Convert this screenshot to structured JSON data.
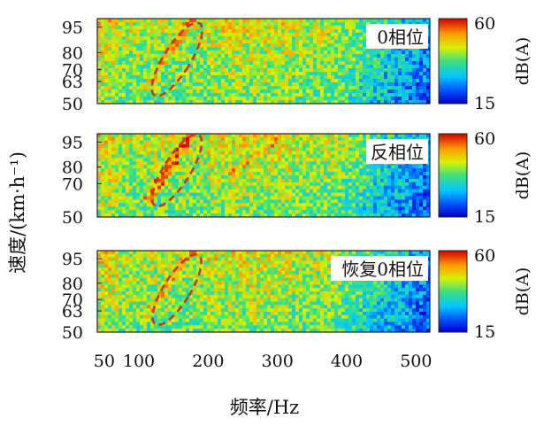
{
  "chart_data": {
    "type": "heatmap",
    "xlabel": "频率/Hz",
    "ylabel": "速度/(km·h⁻¹)",
    "x_ticks": [
      50,
      100,
      200,
      300,
      400,
      500
    ],
    "xlim": [
      40,
      520
    ],
    "colorbar": {
      "label": "dB(A)",
      "min": 15,
      "max": 60,
      "colormap": "jet"
    },
    "panels": [
      {
        "tag": "0相位",
        "y_ticks": [
          50,
          63,
          70,
          80,
          95
        ],
        "ylim": [
          50,
          100
        ],
        "ellipse": {
          "center": [
            155,
            76
          ],
          "highlight_color": "#c0392b"
        }
      },
      {
        "tag": "反相位",
        "y_ticks": [
          50,
          70,
          80,
          95
        ],
        "ylim": [
          50,
          100
        ],
        "ellipse": {
          "center": [
            155,
            78
          ],
          "highlight_color": "#c0392b"
        }
      },
      {
        "tag": "恢复0相位",
        "y_ticks": [
          50,
          63,
          70,
          80,
          95
        ],
        "ylim": [
          50,
          100
        ],
        "ellipse": {
          "center": [
            155,
            76
          ],
          "highlight_color": "#c0392b"
        }
      }
    ]
  }
}
